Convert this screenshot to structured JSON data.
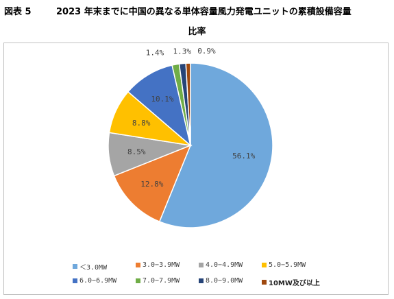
{
  "figure_label": "図表 5",
  "title_line1": "2023 年末までに中国の異なる単体容量風力発電ユニットの累積設備容量",
  "title_line2": "比率",
  "chart_data": {
    "type": "pie",
    "categories": [
      "＜3.0MW",
      "3.0−3.9MW",
      "4.0−4.9MW",
      "5.0−5.9MW",
      "6.0−6.9MW",
      "7.0−7.9MW",
      "8.0−9.0MW",
      "10MW及び以上"
    ],
    "values": [
      56.1,
      12.8,
      8.5,
      8.8,
      10.1,
      1.4,
      1.3,
      0.9
    ],
    "value_labels": [
      "56.1%",
      "12.8%",
      "8.5%",
      "8.8%",
      "10.1%",
      "1.4%",
      "1.3%",
      "0.9%"
    ],
    "colors": [
      "#6fa8dc",
      "#ed7d31",
      "#a5a5a5",
      "#ffc000",
      "#4472c4",
      "#70ad47",
      "#264478",
      "#9e480e"
    ],
    "start_angle_deg": 90,
    "direction": "clockwise",
    "legend_position": "bottom"
  }
}
